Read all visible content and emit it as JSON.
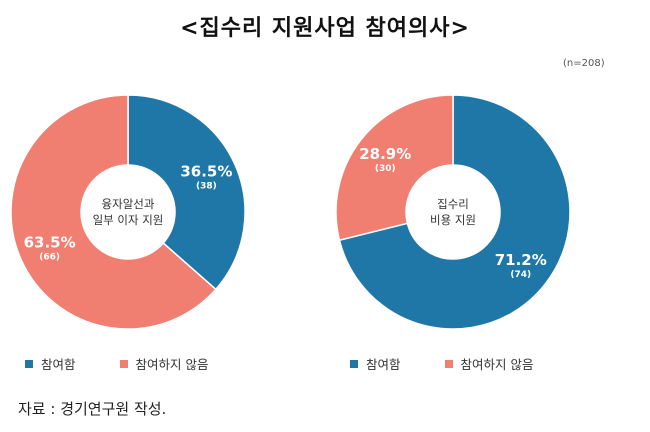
{
  "title": "<집수리 지원사업 참여의사>",
  "note": "(n=208)",
  "source": "자료 : 경기연구원 작성.",
  "colors": {
    "participate": "#1f77a7",
    "not_participate": "#f07f72"
  },
  "legend": [
    "참여함",
    "참여하지 않음"
  ],
  "chart_data": [
    {
      "type": "pie",
      "center_label": [
        "융자알선과",
        "일부 이자 지원"
      ],
      "categories": [
        "참여함",
        "참여하지 않음"
      ],
      "values": [
        36.5,
        63.5
      ],
      "counts": [
        38,
        66
      ],
      "labels": [
        "36.5%",
        "63.5%"
      ],
      "count_labels": [
        "(38)",
        "(66)"
      ]
    },
    {
      "type": "pie",
      "center_label": [
        "집수리",
        "비용 지원"
      ],
      "categories": [
        "참여함",
        "참여하지 않음"
      ],
      "values": [
        71.2,
        28.9
      ],
      "counts": [
        74,
        30
      ],
      "labels": [
        "71.2%",
        "28.9%"
      ],
      "count_labels": [
        "(74)",
        "(30)"
      ]
    }
  ]
}
